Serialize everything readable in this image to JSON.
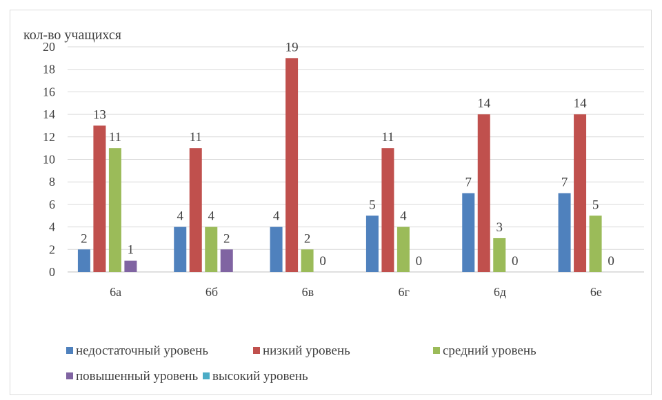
{
  "chart_data": {
    "type": "bar",
    "title": "",
    "xlabel": "",
    "ylabel": "кол-во учащихся",
    "ylim": [
      0,
      20
    ],
    "yticks": [
      0,
      2,
      4,
      6,
      8,
      10,
      12,
      14,
      16,
      18,
      20
    ],
    "grid": true,
    "legend_position": "bottom",
    "categories": [
      "6а",
      "6б",
      "6в",
      "6г",
      "6д",
      "6е"
    ],
    "series": [
      {
        "name": "недостаточный уровень",
        "color": "#4f81bd",
        "values": [
          2,
          4,
          4,
          5,
          7,
          7
        ]
      },
      {
        "name": "низкий уровень",
        "color": "#c0504d",
        "values": [
          13,
          11,
          19,
          11,
          14,
          14
        ]
      },
      {
        "name": "средний уровень",
        "color": "#9bbb59",
        "values": [
          11,
          4,
          2,
          4,
          3,
          5
        ]
      },
      {
        "name": "повышенный уровень",
        "color": "#8064a2",
        "values": [
          1,
          2,
          null,
          null,
          null,
          null
        ]
      },
      {
        "name": "высокий уровень",
        "color": "#4bacc6",
        "values": [
          null,
          null,
          null,
          null,
          null,
          null
        ]
      }
    ],
    "data_labels": [
      {
        "category": "6а",
        "series": [
          2,
          13,
          11,
          1
        ]
      },
      {
        "category": "6б",
        "series": [
          4,
          11,
          4,
          2
        ]
      },
      {
        "category": "6в",
        "series": [
          4,
          19,
          2,
          0
        ]
      },
      {
        "category": "6г",
        "series": [
          5,
          11,
          4,
          0
        ]
      },
      {
        "category": "6д",
        "series": [
          7,
          14,
          3,
          0
        ]
      },
      {
        "category": "6е",
        "series": [
          7,
          14,
          5,
          0
        ]
      }
    ]
  }
}
